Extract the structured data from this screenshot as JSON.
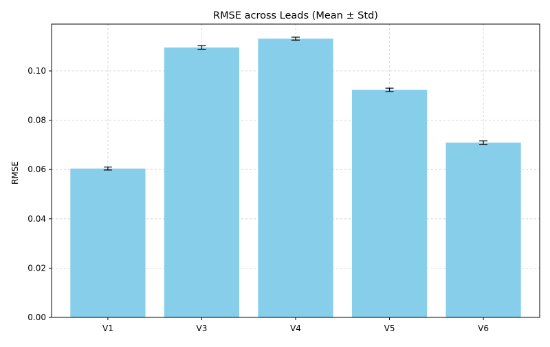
{
  "chart_data": {
    "type": "bar",
    "title": "RMSE across Leads (Mean ± Std)",
    "xlabel": "",
    "ylabel": "RMSE",
    "categories": [
      "V1",
      "V3",
      "V4",
      "V5",
      "V6"
    ],
    "values": [
      0.0604,
      0.1095,
      0.1131,
      0.0923,
      0.0709
    ],
    "errors": [
      0.0006,
      0.0007,
      0.0006,
      0.0007,
      0.0007
    ],
    "ylim": [
      0.0,
      0.119
    ],
    "yticks": [
      0.0,
      0.02,
      0.04,
      0.06,
      0.08,
      0.1
    ],
    "ytick_labels": [
      "0.00",
      "0.02",
      "0.04",
      "0.06",
      "0.08",
      "0.10"
    ],
    "grid": true,
    "bar_color": "#87CEEB",
    "error_color": "#000000",
    "grid_color": "#cccccc"
  }
}
